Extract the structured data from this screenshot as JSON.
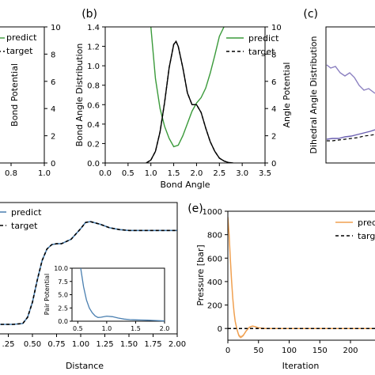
{
  "chart_data": [
    {
      "panel": "a",
      "type": "line",
      "visible": "right edge only",
      "x_ticks": [
        "0.8",
        "1.0"
      ],
      "right_ylabel": "Bond Potential",
      "right_ylim": [
        0,
        10
      ],
      "right_ticks": [
        "0",
        "2",
        "4",
        "6",
        "8",
        "10"
      ],
      "legend": [
        "predict",
        "target"
      ]
    },
    {
      "panel": "b",
      "type": "line",
      "title": "(b)",
      "xlabel": "Bond Angle",
      "ylabel": "Bond Angle Distribution",
      "right_ylabel": "Angle Potential",
      "xlim": [
        0.0,
        3.5
      ],
      "ylim": [
        0.0,
        1.4
      ],
      "right_ylim": [
        0,
        10
      ],
      "x_ticks": [
        "0.0",
        "0.5",
        "1.0",
        "1.5",
        "2.0",
        "2.5",
        "3.0",
        "3.5"
      ],
      "y_ticks": [
        "0.0",
        "0.2",
        "0.4",
        "0.6",
        "0.8",
        "1.0",
        "1.2",
        "1.4"
      ],
      "right_ticks": [
        "0",
        "2",
        "4",
        "6",
        "8",
        "10"
      ],
      "legend": [
        "predict",
        "target"
      ],
      "series": [
        {
          "name": "predict",
          "color": "#3a9a3a",
          "axis": "right",
          "x": [
            1.0,
            1.1,
            1.2,
            1.3,
            1.4,
            1.5,
            1.6,
            1.7,
            1.8,
            1.9,
            2.0,
            2.1,
            2.2,
            2.3,
            2.4,
            2.5,
            2.6
          ],
          "y": [
            10.0,
            6.2,
            4.0,
            2.7,
            1.8,
            1.2,
            1.3,
            2.0,
            2.9,
            3.8,
            4.4,
            4.8,
            5.5,
            6.6,
            7.9,
            9.3,
            10.0
          ]
        },
        {
          "name": "predict",
          "color": "#000000",
          "axis": "left",
          "x": [
            0.9,
            1.0,
            1.1,
            1.2,
            1.3,
            1.4,
            1.5,
            1.55,
            1.6,
            1.7,
            1.8,
            1.9,
            2.0,
            2.1,
            2.2,
            2.3,
            2.4,
            2.5,
            2.6,
            2.7,
            2.8
          ],
          "y": [
            0.0,
            0.03,
            0.12,
            0.32,
            0.62,
            0.98,
            1.22,
            1.25,
            1.2,
            0.98,
            0.72,
            0.6,
            0.6,
            0.52,
            0.36,
            0.22,
            0.12,
            0.05,
            0.02,
            0.005,
            0.0
          ]
        },
        {
          "name": "target",
          "color": "#000000",
          "axis": "left",
          "x": [
            0.9,
            1.0,
            1.1,
            1.2,
            1.3,
            1.4,
            1.5,
            1.55,
            1.6,
            1.7,
            1.8,
            1.9,
            2.0,
            2.1,
            2.2,
            2.3,
            2.4,
            2.5,
            2.6,
            2.7,
            2.8
          ],
          "y": [
            0.0,
            0.03,
            0.12,
            0.32,
            0.62,
            0.98,
            1.22,
            1.25,
            1.2,
            0.98,
            0.72,
            0.6,
            0.6,
            0.52,
            0.36,
            0.22,
            0.12,
            0.05,
            0.02,
            0.005,
            0.0
          ]
        }
      ]
    },
    {
      "panel": "c",
      "type": "line",
      "title": "(c)",
      "ylabel": "Dihedral Angle Distribution",
      "visible": "left edge only"
    },
    {
      "panel": "d",
      "type": "line",
      "xlabel": "Distance",
      "xlim": [
        0.0,
        2.0
      ],
      "x_ticks": [
        ".25",
        "0.50",
        "0.75",
        "1.00",
        "1.25",
        "1.50",
        "1.75",
        "2.00"
      ],
      "legend": [
        "predict",
        "target"
      ],
      "series": [
        {
          "name": "predict",
          "color": "#4a7fb0",
          "x": [
            0.0,
            0.3,
            0.4,
            0.45,
            0.5,
            0.55,
            0.6,
            0.65,
            0.7,
            0.75,
            0.8,
            0.9,
            1.0,
            1.05,
            1.1,
            1.2,
            1.3,
            1.4,
            1.5,
            1.7,
            2.0
          ],
          "y": [
            0.0,
            0.0,
            0.01,
            0.08,
            0.25,
            0.5,
            0.72,
            0.85,
            0.9,
            0.91,
            0.91,
            0.96,
            1.08,
            1.15,
            1.16,
            1.13,
            1.09,
            1.07,
            1.06,
            1.06,
            1.06
          ]
        },
        {
          "name": "target",
          "color": "#000000",
          "x": [
            0.0,
            0.3,
            0.4,
            0.45,
            0.5,
            0.55,
            0.6,
            0.65,
            0.7,
            0.75,
            0.8,
            0.9,
            1.0,
            1.05,
            1.1,
            1.2,
            1.3,
            1.4,
            1.5,
            1.7,
            2.0
          ],
          "y": [
            0.0,
            0.0,
            0.01,
            0.08,
            0.25,
            0.5,
            0.72,
            0.85,
            0.9,
            0.91,
            0.91,
            0.96,
            1.08,
            1.15,
            1.16,
            1.13,
            1.09,
            1.07,
            1.06,
            1.06,
            1.06
          ]
        }
      ],
      "inset": {
        "ylabel": "Pair Potential",
        "xlim": [
          0.4,
          2.0
        ],
        "ylim": [
          0.0,
          10.0
        ],
        "x_ticks": [
          "0.5",
          "1.0",
          "1.5",
          "2.0"
        ],
        "y_ticks": [
          "0.0",
          "2.5",
          "5.0",
          "7.5",
          "10.0"
        ],
        "series": [
          {
            "color": "#4a7fb0",
            "x": [
              0.55,
              0.6,
              0.65,
              0.7,
              0.75,
              0.8,
              0.85,
              0.9,
              1.0,
              1.1,
              1.2,
              1.3,
              1.4,
              1.5,
              1.6,
              1.7,
              1.8,
              1.9,
              2.0
            ],
            "y": [
              10.0,
              6.5,
              4.0,
              2.5,
              1.6,
              1.0,
              0.7,
              0.75,
              0.95,
              0.85,
              0.6,
              0.4,
              0.3,
              0.25,
              0.22,
              0.2,
              0.15,
              0.1,
              0.05
            ]
          }
        ]
      }
    },
    {
      "panel": "e",
      "type": "line",
      "title": "(e)",
      "xlabel": "Iteration",
      "ylabel": "Pressure [bar]",
      "xlim": [
        0,
        240
      ],
      "ylim": [
        -100,
        1000
      ],
      "x_ticks": [
        "0",
        "50",
        "100",
        "150",
        "200"
      ],
      "y_ticks": [
        "0",
        "200",
        "400",
        "600",
        "800",
        "1000"
      ],
      "legend": [
        "predic",
        "targ"
      ],
      "series": [
        {
          "name": "predict",
          "color": "#f0a050",
          "x": [
            0,
            2,
            4,
            6,
            8,
            10,
            12,
            15,
            18,
            21,
            25,
            30,
            35,
            40,
            45,
            50,
            60,
            70,
            80,
            100,
            150,
            200,
            240
          ],
          "y": [
            950,
            800,
            600,
            420,
            260,
            140,
            60,
            -10,
            -60,
            -75,
            -60,
            -20,
            10,
            20,
            15,
            5,
            0,
            0,
            0,
            0,
            0,
            0,
            0
          ]
        },
        {
          "name": "target",
          "color": "#000000",
          "x": [
            0,
            240
          ],
          "y": [
            0,
            0
          ]
        }
      ]
    }
  ]
}
